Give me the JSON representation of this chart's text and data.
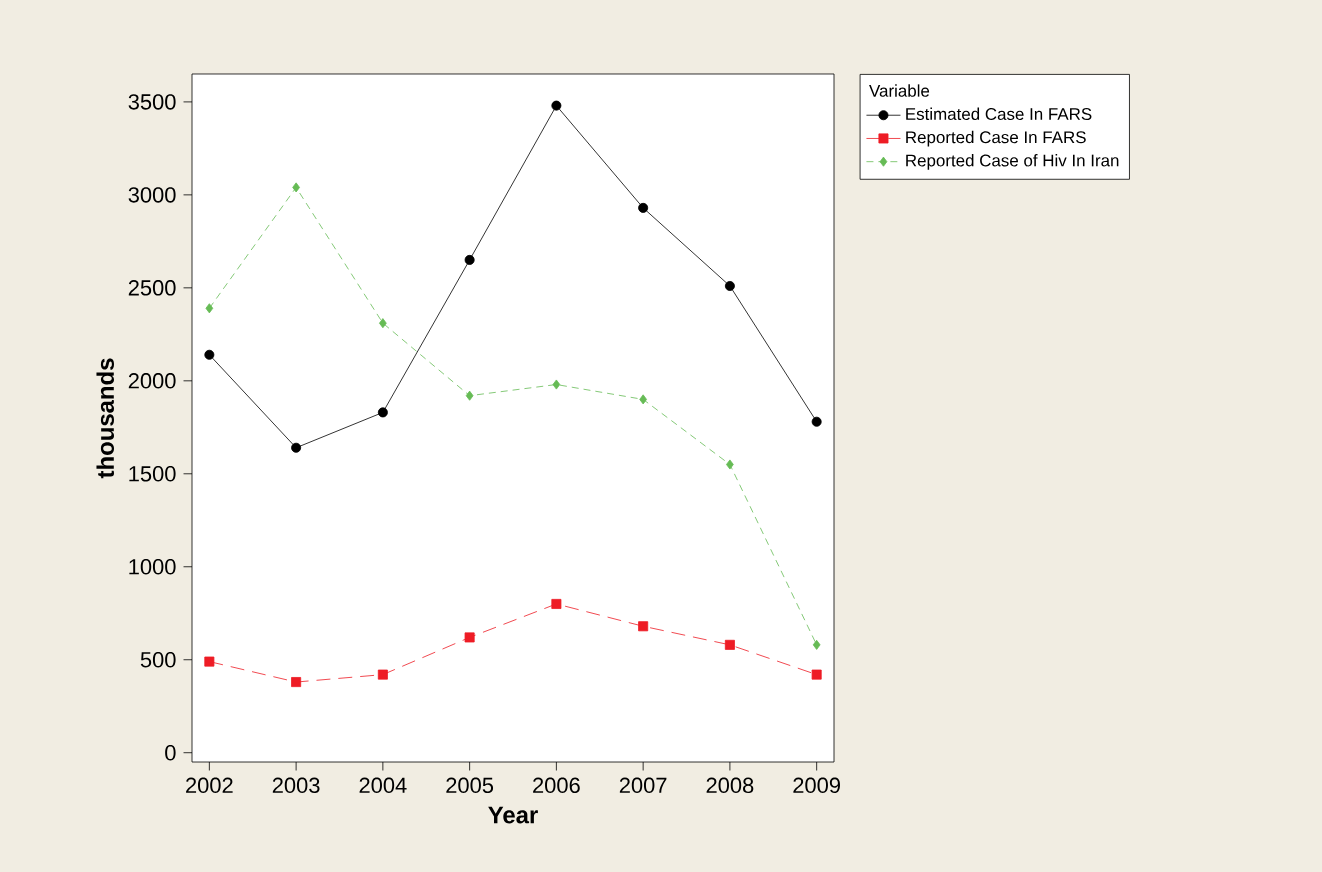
{
  "chart_data": {
    "type": "line",
    "xlabel": "Year",
    "ylabel": "thousands",
    "legend_title": "Variable",
    "legend": "top right",
    "grid": false,
    "x": [
      2002,
      2003,
      2004,
      2005,
      2006,
      2007,
      2008,
      2009
    ],
    "xlim": [
      2001.8,
      2009.2
    ],
    "xticks": [
      2002,
      2003,
      2004,
      2005,
      2006,
      2007,
      2008,
      2009
    ],
    "ylim": [
      -50,
      3650
    ],
    "yticks": [
      0,
      500,
      1000,
      1500,
      2000,
      2500,
      3000,
      3500
    ],
    "series": [
      {
        "name": "Estimated Case In FARS",
        "color": "#000000",
        "marker": "circle",
        "line_style": "solid",
        "values": [
          2140,
          1640,
          1830,
          2650,
          3480,
          2930,
          2510,
          1780
        ]
      },
      {
        "name": "Reported  Case In FARS",
        "color": "#ee1c25",
        "marker": "square",
        "line_style": "dashed",
        "values": [
          490,
          380,
          420,
          620,
          800,
          680,
          580,
          420
        ]
      },
      {
        "name": "Reported Case of Hiv In Iran",
        "color": "#66bb55",
        "marker": "diamond",
        "line_style": "dotted",
        "values": [
          2390,
          3040,
          2310,
          1920,
          1980,
          1900,
          1550,
          580
        ]
      }
    ]
  }
}
